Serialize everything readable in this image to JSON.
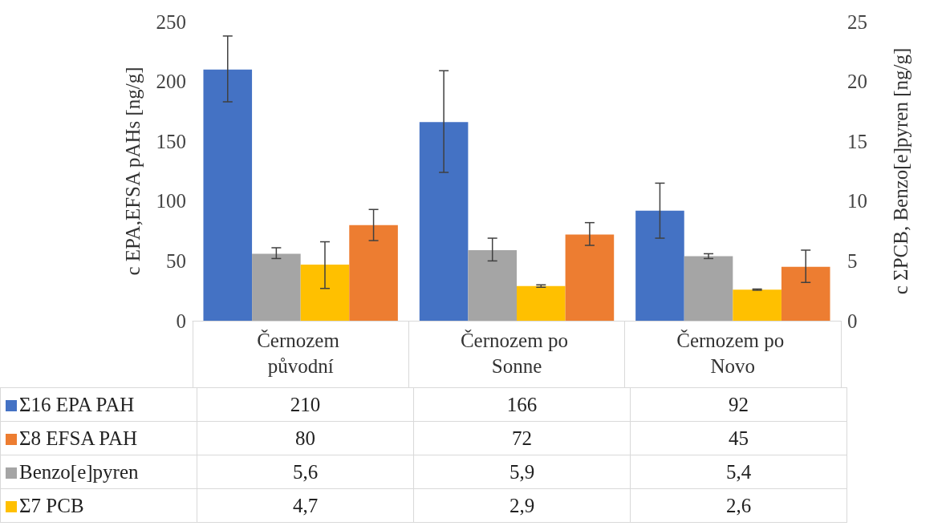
{
  "chart_data": {
    "type": "bar",
    "ylabel": "c EPA,EFSA pAHs [ng/g]",
    "y2label": "c ΣPCB, Benzo[e]pyren [ng/g]",
    "categories": [
      "Černozem původní",
      "Černozem po Sonne",
      "Černozem po Novo"
    ],
    "series": [
      {
        "name": "Σ16 EPA PAH",
        "color": "#4472c4",
        "values": [
          210,
          166,
          92
        ],
        "value_labels": [
          "210",
          "166",
          "92"
        ],
        "errors": [
          [
            183,
            238
          ],
          [
            124,
            209
          ],
          [
            69,
            115
          ]
        ]
      },
      {
        "name": "Σ8 EFSA PAH",
        "color": "#ed7d31",
        "values": [
          80,
          72,
          45
        ],
        "value_labels": [
          "80",
          "72",
          "45"
        ],
        "errors": [
          [
            67,
            93
          ],
          [
            63,
            82
          ],
          [
            32,
            59
          ]
        ]
      },
      {
        "name": "Benzo[e]pyren",
        "color": "#a5a5a5",
        "axis": "y2",
        "values": [
          5.6,
          5.9,
          5.4
        ],
        "value_labels": [
          "5,6",
          "5,9",
          "5,4"
        ],
        "errors": [
          [
            5.2,
            6.1
          ],
          [
            5.0,
            6.9
          ],
          [
            5.2,
            5.6
          ]
        ]
      },
      {
        "name": "Σ7 PCB",
        "color": "#ffc000",
        "axis": "y2",
        "values": [
          4.7,
          2.9,
          2.6
        ],
        "value_labels": [
          "4,7",
          "2,9",
          "2,6"
        ],
        "errors": [
          [
            2.7,
            6.6
          ],
          [
            2.8,
            3.0
          ],
          [
            2.55,
            2.65
          ]
        ]
      }
    ],
    "ylim": [
      0,
      250
    ],
    "yticks": [
      0,
      50,
      100,
      150,
      200,
      250
    ],
    "y2lim": [
      0,
      25
    ],
    "y2ticks": [
      0,
      5,
      10,
      15,
      20,
      25
    ],
    "grid": false,
    "legend": "bottom"
  }
}
